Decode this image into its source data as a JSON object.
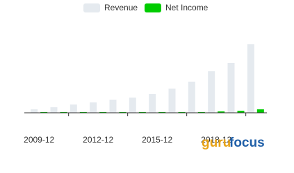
{
  "chart_data": {
    "type": "bar",
    "categories": [
      "2009-12",
      null,
      null,
      "2012-12",
      null,
      null,
      "2015-12",
      null,
      null,
      "2018-12",
      null,
      null
    ],
    "series": [
      {
        "name": "Revenue",
        "color": "#e5eaef",
        "values": [
          5,
          8,
          12,
          15,
          19,
          22,
          27,
          35,
          45,
          60,
          72,
          99
        ]
      },
      {
        "name": "Net Income",
        "color": "#00cc00",
        "values": [
          1,
          1,
          1,
          1,
          1,
          1,
          1,
          1,
          1,
          2,
          3,
          5
        ]
      }
    ],
    "ylim": [
      0,
      110
    ],
    "watermark": {
      "part1": "guru",
      "part2": "focus"
    }
  }
}
